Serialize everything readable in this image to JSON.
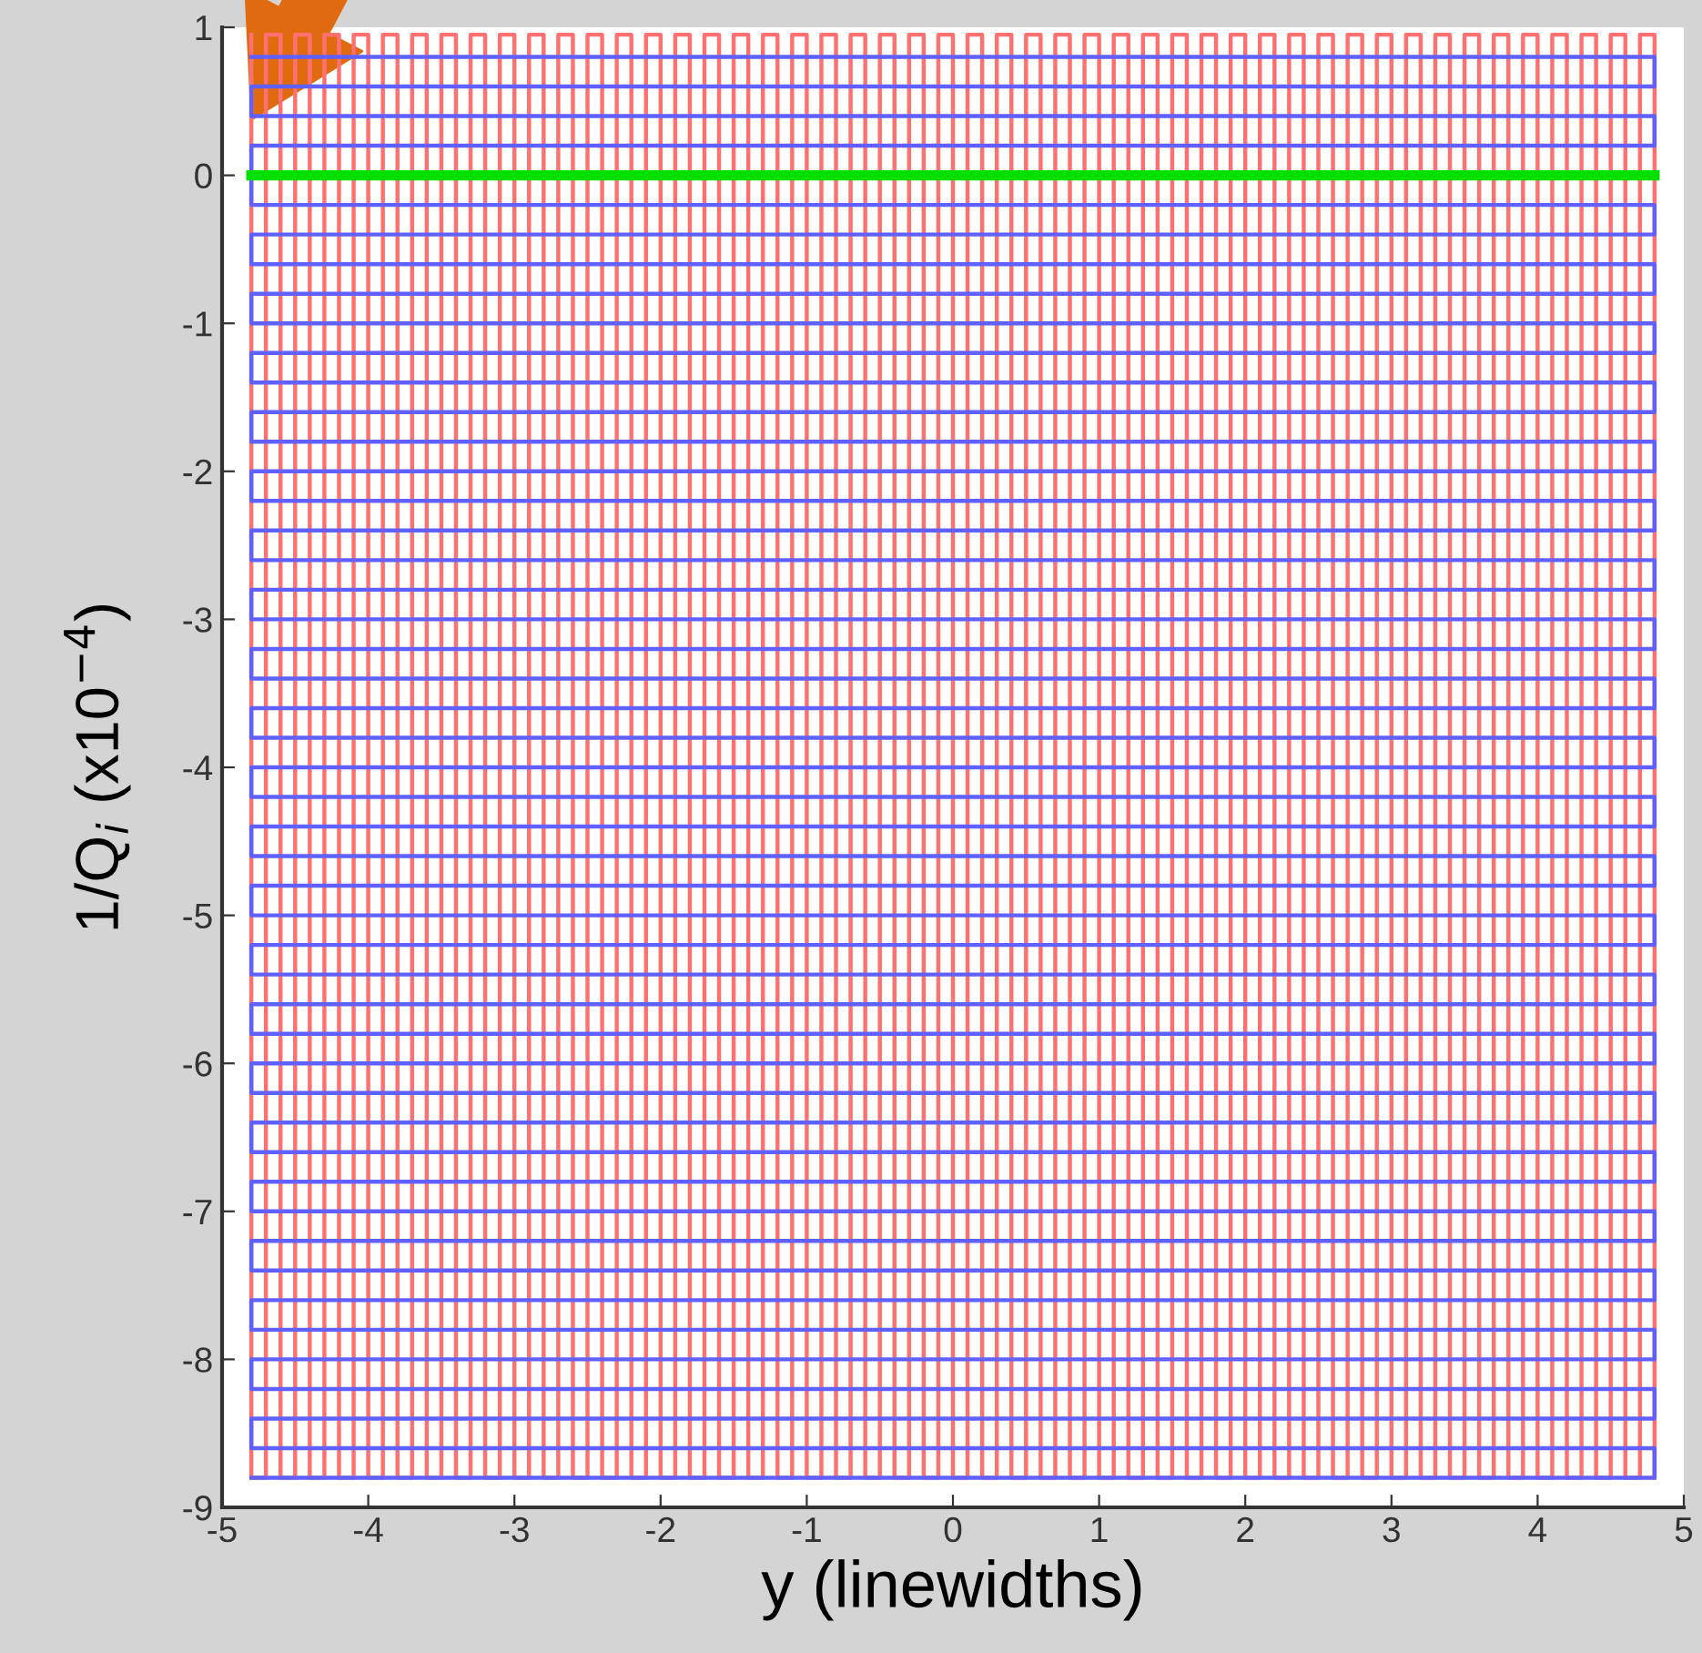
{
  "chart_data": {
    "type": "line",
    "xlabel": "y (linewidths)",
    "ylabel": "1/Q$_{i}$ (x10$^{−4}$)",
    "xlim": [
      -5,
      5
    ],
    "ylim": [
      -9,
      1
    ],
    "xticks": [
      -5,
      -4,
      -3,
      -2,
      -1,
      0,
      1,
      2,
      3,
      4,
      5
    ],
    "yticks": [
      -9,
      -8,
      -7,
      -6,
      -5,
      -4,
      -3,
      -2,
      -1,
      0,
      1
    ],
    "grid": false,
    "marker": "none",
    "line_style": "solid",
    "series": [
      {
        "color": "#ff7070",
        "x": [
          -4.8,
          -4.8,
          -4.7,
          -4.7,
          -4.6,
          -4.6,
          -4.5,
          -4.5,
          -4.4,
          -4.4,
          -4.3,
          -4.3,
          -4.2,
          -4.2,
          -4.1,
          -4.1,
          -4,
          -4,
          -3.9,
          -3.9,
          -3.8,
          -3.8,
          -3.7,
          -3.7,
          -3.6,
          -3.6,
          -3.5,
          -3.5,
          -3.4,
          -3.4,
          -3.3,
          -3.3,
          -3.2,
          -3.2,
          -3.1,
          -3.1,
          -3,
          -3,
          -2.9,
          -2.9,
          -2.8,
          -2.8,
          -2.7,
          -2.7,
          -2.6,
          -2.6,
          -2.5,
          -2.5,
          -2.4,
          -2.4,
          -2.3,
          -2.3,
          -2.2,
          -2.2,
          -2.1,
          -2.1,
          -2,
          -2,
          -1.9,
          -1.9,
          -1.8,
          -1.8,
          -1.7,
          -1.7,
          -1.6,
          -1.6,
          -1.5,
          -1.5,
          -1.4,
          -1.4,
          -1.3,
          -1.3,
          -1.2,
          -1.2,
          -1.1,
          -1.1,
          -1,
          -1,
          -0.9,
          -0.9,
          -0.8,
          -0.8,
          -0.7,
          -0.7,
          -0.6,
          -0.6,
          -0.5,
          -0.5,
          -0.4,
          -0.4,
          -0.3,
          -0.3,
          -0.2,
          -0.2,
          -0.1,
          -0.1,
          0,
          0,
          0.1,
          0.1,
          0.2,
          0.2,
          0.3,
          0.3,
          0.4,
          0.4,
          0.5,
          0.5,
          0.6,
          0.6,
          0.7,
          0.7,
          0.8,
          0.8,
          0.9,
          0.9,
          1,
          1,
          1.1,
          1.1,
          1.2,
          1.2,
          1.3,
          1.3,
          1.4,
          1.4,
          1.5,
          1.5,
          1.6,
          1.6,
          1.7,
          1.7,
          1.8,
          1.8,
          1.9,
          1.9,
          2,
          2,
          2.1,
          2.1,
          2.2,
          2.2,
          2.3,
          2.3,
          2.4,
          2.4,
          2.5,
          2.5,
          2.6,
          2.6,
          2.7,
          2.7,
          2.8,
          2.8,
          2.9,
          2.9,
          3,
          3,
          3.1,
          3.1,
          3.2,
          3.2,
          3.3,
          3.3,
          3.4,
          3.4,
          3.5,
          3.5,
          3.6,
          3.6,
          3.7,
          3.7,
          3.8,
          3.8,
          3.9,
          3.9,
          4,
          4,
          4.1,
          4.1,
          4.2,
          4.2,
          4.3,
          4.3,
          4.4,
          4.4,
          4.5,
          4.5,
          4.6,
          4.6,
          4.7,
          4.7,
          4.8,
          4.8
        ],
        "values": [
          0.95,
          -8.8,
          -8.8,
          0.95,
          0.95,
          -8.8,
          -8.8,
          0.95,
          0.95,
          -8.8,
          -8.8,
          0.95,
          0.95,
          -8.8,
          -8.8,
          0.95,
          0.95,
          -8.8,
          -8.8,
          0.95,
          0.95,
          -8.8,
          -8.8,
          0.95,
          0.95,
          -8.8,
          -8.8,
          0.95,
          0.95,
          -8.8,
          -8.8,
          0.95,
          0.95,
          -8.8,
          -8.8,
          0.95,
          0.95,
          -8.8,
          -8.8,
          0.95,
          0.95,
          -8.8,
          -8.8,
          0.95,
          0.95,
          -8.8,
          -8.8,
          0.95,
          0.95,
          -8.8,
          -8.8,
          0.95,
          0.95,
          -8.8,
          -8.8,
          0.95,
          0.95,
          -8.8,
          -8.8,
          0.95,
          0.95,
          -8.8,
          -8.8,
          0.95,
          0.95,
          -8.8,
          -8.8,
          0.95,
          0.95,
          -8.8,
          -8.8,
          0.95,
          0.95,
          -8.8,
          -8.8,
          0.95,
          0.95,
          -8.8,
          -8.8,
          0.95,
          0.95,
          -8.8,
          -8.8,
          0.95,
          0.95,
          -8.8,
          -8.8,
          0.95,
          0.95,
          -8.8,
          -8.8,
          0.95,
          0.95,
          -8.8,
          -8.8,
          0.95,
          0.95,
          -8.8,
          -8.8,
          0.95,
          0.95,
          -8.8,
          -8.8,
          0.95,
          0.95,
          -8.8,
          -8.8,
          0.95,
          0.95,
          -8.8,
          -8.8,
          0.95,
          0.95,
          -8.8,
          -8.8,
          0.95,
          0.95,
          -8.8,
          -8.8,
          0.95,
          0.95,
          -8.8,
          -8.8,
          0.95,
          0.95,
          -8.8,
          -8.8,
          0.95,
          0.95,
          -8.8,
          -8.8,
          0.95,
          0.95,
          -8.8,
          -8.8,
          0.95,
          0.95,
          -8.8,
          -8.8,
          0.95,
          0.95,
          -8.8,
          -8.8,
          0.95,
          0.95,
          -8.8,
          -8.8,
          0.95,
          0.95,
          -8.8,
          -8.8,
          0.95,
          0.95,
          -8.8,
          -8.8,
          0.95,
          0.95,
          -8.8,
          -8.8,
          0.95,
          0.95,
          -8.8,
          -8.8,
          0.95,
          0.95,
          -8.8,
          -8.8,
          0.95,
          0.95,
          -8.8,
          -8.8,
          0.95,
          0.95,
          -8.8,
          -8.8,
          0.95,
          0.95,
          -8.8,
          -8.8,
          0.95,
          0.95,
          -8.8,
          -8.8,
          0.95,
          0.95,
          -8.8,
          -8.8,
          0.95,
          0.95,
          -8.8,
          -8.8,
          0.95,
          0.95,
          -8.8
        ]
      },
      {
        "color": "#6060ff",
        "x": [
          -4.8,
          4.8,
          4.8,
          -4.8,
          -4.8,
          4.8,
          4.8,
          -4.8,
          -4.8,
          4.8,
          4.8,
          -4.8,
          -4.8,
          4.8,
          4.8,
          -4.8,
          -4.8,
          4.8,
          4.8,
          -4.8,
          -4.8,
          4.8,
          4.8,
          -4.8,
          -4.8,
          4.8,
          4.8,
          -4.8,
          -4.8,
          4.8,
          4.8,
          -4.8,
          -4.8,
          4.8,
          4.8,
          -4.8,
          -4.8,
          4.8,
          4.8,
          -4.8,
          -4.8,
          4.8,
          4.8,
          -4.8,
          -4.8,
          4.8,
          4.8,
          -4.8,
          -4.8,
          4.8,
          4.8,
          -4.8,
          -4.8,
          4.8,
          4.8,
          -4.8,
          -4.8,
          4.8,
          4.8,
          -4.8,
          -4.8,
          4.8,
          4.8,
          -4.8,
          -4.8,
          4.8,
          4.8,
          -4.8,
          -4.8,
          4.8,
          4.8,
          -4.8,
          -4.8,
          4.8,
          4.8,
          -4.8,
          -4.8,
          4.8,
          4.8,
          -4.8,
          -4.8,
          4.8,
          4.8,
          -4.8,
          -4.8,
          4.8,
          4.8,
          -4.8,
          -4.8,
          4.8,
          4.8,
          -4.8,
          -4.8,
          4.8,
          4.8,
          -4.8
        ],
        "values": [
          0.8,
          0.8,
          0.6,
          0.6,
          0.4,
          0.4,
          0.2,
          0.2,
          -0.2,
          -0.2,
          -0.4,
          -0.4,
          -0.6,
          -0.6,
          -0.8,
          -0.8,
          -1,
          -1,
          -1.2,
          -1.2,
          -1.4,
          -1.4,
          -1.6,
          -1.6,
          -1.8,
          -1.8,
          -2,
          -2,
          -2.2,
          -2.2,
          -2.4,
          -2.4,
          -2.6,
          -2.6,
          -2.8,
          -2.8,
          -3,
          -3,
          -3.2,
          -3.2,
          -3.4,
          -3.4,
          -3.6,
          -3.6,
          -3.8,
          -3.8,
          -4,
          -4,
          -4.2,
          -4.2,
          -4.4,
          -4.4,
          -4.6,
          -4.6,
          -4.8,
          -4.8,
          -5,
          -5,
          -5.2,
          -5.2,
          -5.4,
          -5.4,
          -5.6,
          -5.6,
          -5.8,
          -5.8,
          -6,
          -6,
          -6.2,
          -6.2,
          -6.4,
          -6.4,
          -6.6,
          -6.6,
          -6.8,
          -6.8,
          -7,
          -7,
          -7.2,
          -7.2,
          -7.4,
          -7.4,
          -7.6,
          -7.6,
          -7.8,
          -7.8,
          -8,
          -8,
          -8.2,
          -8.2,
          -8.4,
          -8.4,
          -8.6,
          -8.6,
          -8.8,
          -8.8
        ]
      },
      {
        "color": "#00e000",
        "x": [
          -4.8,
          4.8
        ],
        "values": [
          0,
          0
        ]
      }
    ]
  }
}
